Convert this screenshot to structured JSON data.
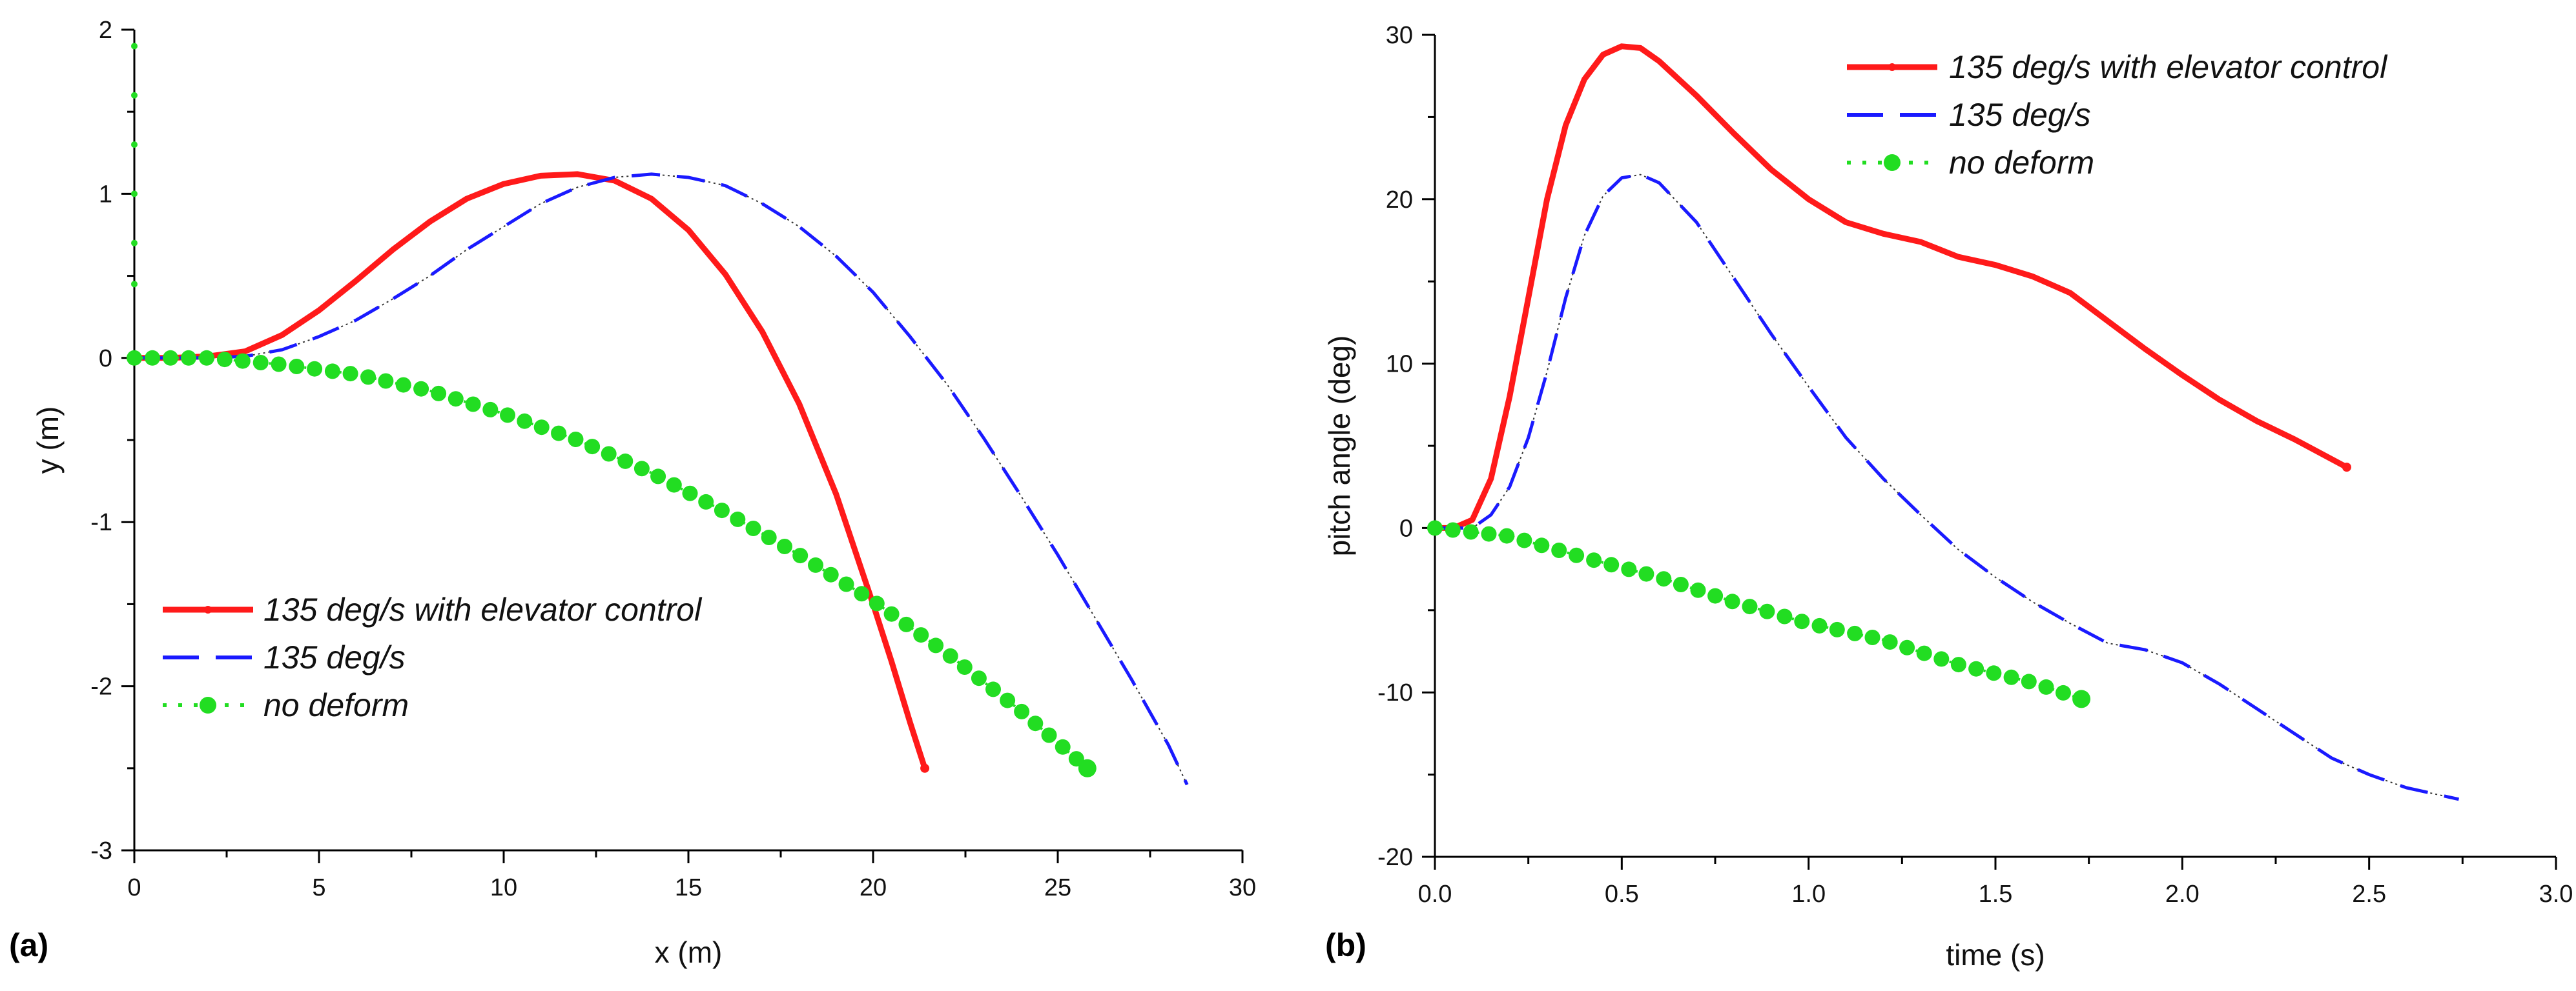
{
  "chart_data": [
    {
      "panel_label": "(a)",
      "type": "line",
      "title": "",
      "xlabel": "x (m)",
      "ylabel": "y (m)",
      "xlim": [
        0,
        30
      ],
      "ylim": [
        -3,
        2
      ],
      "xticks": [
        0,
        5,
        10,
        15,
        20,
        25,
        30
      ],
      "yticks": [
        -3,
        -2,
        -1,
        0,
        1,
        2
      ],
      "xtick_labels": [
        "0",
        "5",
        "10",
        "15",
        "20",
        "25",
        "30"
      ],
      "ytick_labels": [
        "-3",
        "-2",
        "-1",
        "0",
        "1",
        "2"
      ],
      "legend_position": "bottom-left",
      "series": [
        {
          "name": "135 deg/s with elevator control",
          "color": "#ff1a1a",
          "style": "solid",
          "x": [
            0,
            1,
            2,
            3,
            4,
            5,
            6,
            7,
            8,
            9,
            10,
            11,
            12,
            13,
            14,
            15,
            16,
            17,
            18,
            19,
            20,
            20.5,
            21,
            21.4
          ],
          "y": [
            0,
            0,
            0.01,
            0.04,
            0.14,
            0.29,
            0.47,
            0.66,
            0.83,
            0.97,
            1.06,
            1.11,
            1.12,
            1.08,
            0.97,
            0.78,
            0.51,
            0.16,
            -0.28,
            -0.83,
            -1.5,
            -1.85,
            -2.22,
            -2.5
          ]
        },
        {
          "name": "135 deg/s",
          "color": "#1a1aff",
          "style": "dashed",
          "x": [
            0,
            2,
            3,
            4,
            5,
            6,
            7,
            8,
            9,
            10,
            11,
            12,
            13,
            14,
            15,
            16,
            17,
            18,
            19,
            20,
            21,
            22,
            23,
            24,
            25,
            26,
            27,
            28,
            28.5
          ],
          "y": [
            0,
            0,
            0.01,
            0.05,
            0.13,
            0.23,
            0.36,
            0.5,
            0.66,
            0.8,
            0.94,
            1.04,
            1.1,
            1.12,
            1.1,
            1.05,
            0.94,
            0.8,
            0.62,
            0.4,
            0.13,
            -0.16,
            -0.49,
            -0.84,
            -1.2,
            -1.58,
            -1.96,
            -2.36,
            -2.6
          ]
        },
        {
          "name": "no deform",
          "color": "#22dd22",
          "style": "dotted-markers",
          "x": [
            0,
            2,
            4,
            6,
            8,
            10,
            12,
            14,
            16,
            18,
            20,
            22,
            24,
            25.8
          ],
          "y": [
            0,
            0,
            -0.04,
            -0.1,
            -0.2,
            -0.34,
            -0.5,
            -0.7,
            -0.94,
            -1.2,
            -1.48,
            -1.8,
            -2.15,
            -2.5
          ]
        }
      ]
    },
    {
      "panel_label": "(b)",
      "type": "line",
      "title": "",
      "xlabel": "time (s)",
      "ylabel": "pitch angle (deg)",
      "xlim": [
        0,
        3
      ],
      "ylim": [
        -20,
        30
      ],
      "xticks": [
        0,
        0.5,
        1,
        1.5,
        2,
        2.5,
        3
      ],
      "yticks": [
        -20,
        -10,
        0,
        10,
        20,
        30
      ],
      "xtick_labels": [
        "0.0",
        "0.5",
        "1.0",
        "1.5",
        "2.0",
        "2.5",
        "3.0"
      ],
      "ytick_labels": [
        "-20",
        "-10",
        "0",
        "10",
        "20",
        "30"
      ],
      "legend_position": "top-right",
      "series": [
        {
          "name": "135 deg/s with elevator control",
          "color": "#ff1a1a",
          "style": "solid",
          "x": [
            0,
            0.05,
            0.1,
            0.15,
            0.2,
            0.25,
            0.3,
            0.35,
            0.4,
            0.45,
            0.5,
            0.55,
            0.6,
            0.7,
            0.8,
            0.9,
            1.0,
            1.1,
            1.2,
            1.3,
            1.4,
            1.5,
            1.6,
            1.7,
            1.8,
            1.9,
            2.0,
            2.1,
            2.2,
            2.3,
            2.44
          ],
          "y": [
            0,
            0,
            0.5,
            3,
            8,
            14,
            20,
            24.5,
            27.3,
            28.8,
            29.3,
            29.2,
            28.4,
            26.3,
            24,
            21.8,
            20,
            18.6,
            17.9,
            17.4,
            16.5,
            16,
            15.3,
            14.3,
            12.6,
            10.9,
            9.3,
            7.8,
            6.5,
            5.4,
            3.7
          ]
        },
        {
          "name": "135 deg/s",
          "color": "#1a1aff",
          "style": "dashed",
          "x": [
            0,
            0.1,
            0.15,
            0.2,
            0.25,
            0.3,
            0.35,
            0.4,
            0.45,
            0.5,
            0.55,
            0.6,
            0.7,
            0.8,
            0.9,
            1.0,
            1.1,
            1.2,
            1.3,
            1.4,
            1.5,
            1.6,
            1.7,
            1.8,
            1.9,
            2.0,
            2.1,
            2.2,
            2.3,
            2.4,
            2.5,
            2.6,
            2.74
          ],
          "y": [
            0,
            0,
            0.8,
            2.5,
            5.5,
            9.5,
            14,
            17.8,
            20.2,
            21.3,
            21.5,
            21,
            18.6,
            15.2,
            11.8,
            8.6,
            5.5,
            3,
            0.8,
            -1.3,
            -3,
            -4.5,
            -5.8,
            -7,
            -7.4,
            -8.2,
            -9.5,
            -11,
            -12.5,
            -14,
            -15,
            -15.8,
            -16.5
          ]
        },
        {
          "name": "no deform",
          "color": "#22dd22",
          "style": "dotted-markers",
          "x": [
            0,
            0.2,
            0.4,
            0.6,
            0.8,
            1.0,
            1.2,
            1.4,
            1.6,
            1.73
          ],
          "y": [
            0,
            -0.5,
            -1.8,
            -3,
            -4.5,
            -5.8,
            -6.8,
            -8.3,
            -9.4,
            -10.4
          ]
        }
      ]
    }
  ]
}
